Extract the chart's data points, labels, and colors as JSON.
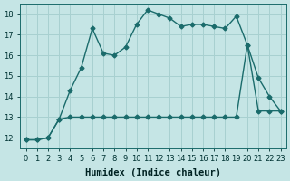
{
  "xlabel": "Humidex (Indice chaleur)",
  "background_color": "#c5e5e5",
  "line_color": "#1a6b6b",
  "grid_color": "#a8d0d0",
  "xlim": [
    -0.5,
    23.5
  ],
  "ylim": [
    11.5,
    18.5
  ],
  "xticks": [
    0,
    1,
    2,
    3,
    4,
    5,
    6,
    7,
    8,
    9,
    10,
    11,
    12,
    13,
    14,
    15,
    16,
    17,
    18,
    19,
    20,
    21,
    22,
    23
  ],
  "yticks": [
    12,
    13,
    14,
    15,
    16,
    17,
    18
  ],
  "jagged_x": [
    0,
    1,
    2,
    3,
    4,
    5,
    6,
    7,
    8,
    9,
    10,
    11,
    12,
    13,
    14,
    15,
    16,
    17,
    18,
    19,
    20,
    21,
    22,
    23
  ],
  "jagged_y": [
    11.9,
    11.9,
    12.0,
    12.9,
    14.3,
    15.4,
    17.3,
    16.1,
    16.0,
    16.4,
    17.5,
    18.2,
    18.0,
    17.8,
    17.4,
    17.5,
    17.5,
    17.4,
    17.3,
    17.9,
    16.5,
    14.9,
    14.0,
    13.3
  ],
  "flat_x": [
    0,
    1,
    2,
    3,
    4,
    5,
    6,
    7,
    8,
    9,
    10,
    11,
    12,
    13,
    14,
    15,
    16,
    17,
    18,
    19,
    20,
    21,
    22,
    23
  ],
  "flat_y": [
    11.9,
    11.9,
    12.0,
    12.9,
    13.0,
    13.0,
    13.0,
    13.0,
    13.0,
    13.0,
    13.0,
    13.0,
    13.0,
    13.0,
    13.0,
    13.0,
    13.0,
    13.0,
    13.0,
    13.0,
    16.5,
    13.3,
    13.3,
    13.3
  ],
  "marker": "D",
  "markersize": 2.5,
  "linewidth": 1.0,
  "xlabel_fontsize": 7.5,
  "tick_fontsize": 6
}
